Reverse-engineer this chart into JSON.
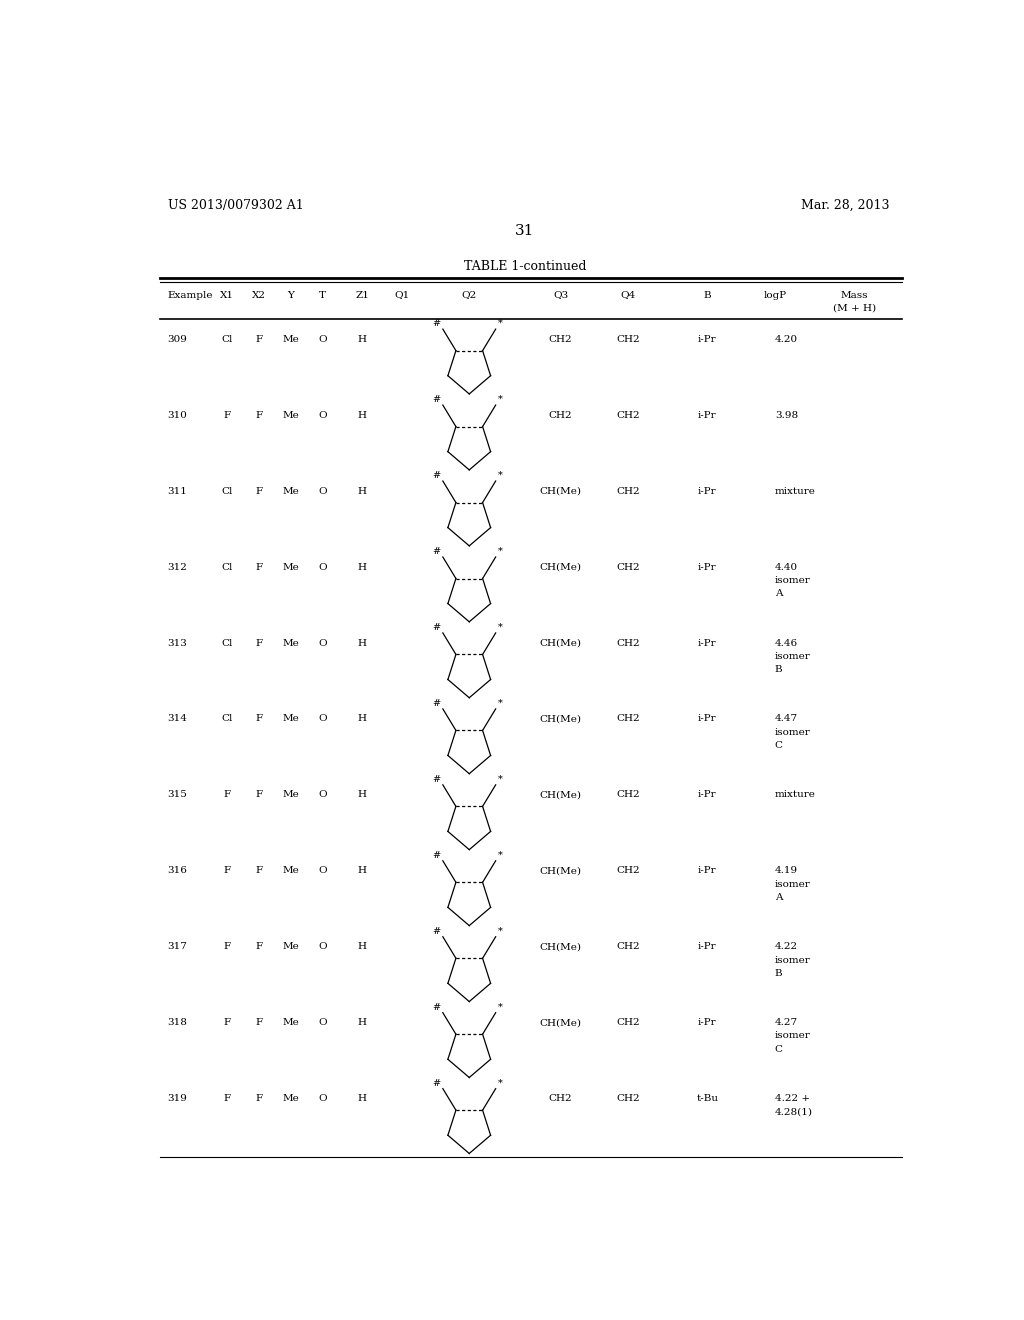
{
  "patent_number": "US 2013/0079302 A1",
  "date": "Mar. 28, 2013",
  "page_number": "31",
  "table_title": "TABLE 1-continued",
  "rows": [
    {
      "ex": "309",
      "x1": "Cl",
      "x2": "F",
      "y": "Me",
      "t": "O",
      "z1": "H",
      "q3": "CH2",
      "q4": "CH2",
      "b": "i-Pr",
      "logp": "4.20",
      "mass": ""
    },
    {
      "ex": "310",
      "x1": "F",
      "x2": "F",
      "y": "Me",
      "t": "O",
      "z1": "H",
      "q3": "CH2",
      "q4": "CH2",
      "b": "i-Pr",
      "logp": "3.98",
      "mass": ""
    },
    {
      "ex": "311",
      "x1": "Cl",
      "x2": "F",
      "y": "Me",
      "t": "O",
      "z1": "H",
      "q3": "CH(Me)",
      "q4": "CH2",
      "b": "i-Pr",
      "logp": "mixture",
      "mass": ""
    },
    {
      "ex": "312",
      "x1": "Cl",
      "x2": "F",
      "y": "Me",
      "t": "O",
      "z1": "H",
      "q3": "CH(Me)",
      "q4": "CH2",
      "b": "i-Pr",
      "logp": "4.40\nisomer\nA",
      "mass": ""
    },
    {
      "ex": "313",
      "x1": "Cl",
      "x2": "F",
      "y": "Me",
      "t": "O",
      "z1": "H",
      "q3": "CH(Me)",
      "q4": "CH2",
      "b": "i-Pr",
      "logp": "4.46\nisomer\nB",
      "mass": ""
    },
    {
      "ex": "314",
      "x1": "Cl",
      "x2": "F",
      "y": "Me",
      "t": "O",
      "z1": "H",
      "q3": "CH(Me)",
      "q4": "CH2",
      "b": "i-Pr",
      "logp": "4.47\nisomer\nC",
      "mass": ""
    },
    {
      "ex": "315",
      "x1": "F",
      "x2": "F",
      "y": "Me",
      "t": "O",
      "z1": "H",
      "q3": "CH(Me)",
      "q4": "CH2",
      "b": "i-Pr",
      "logp": "mixture",
      "mass": ""
    },
    {
      "ex": "316",
      "x1": "F",
      "x2": "F",
      "y": "Me",
      "t": "O",
      "z1": "H",
      "q3": "CH(Me)",
      "q4": "CH2",
      "b": "i-Pr",
      "logp": "4.19\nisomer\nA",
      "mass": ""
    },
    {
      "ex": "317",
      "x1": "F",
      "x2": "F",
      "y": "Me",
      "t": "O",
      "z1": "H",
      "q3": "CH(Me)",
      "q4": "CH2",
      "b": "i-Pr",
      "logp": "4.22\nisomer\nB",
      "mass": ""
    },
    {
      "ex": "318",
      "x1": "F",
      "x2": "F",
      "y": "Me",
      "t": "O",
      "z1": "H",
      "q3": "CH(Me)",
      "q4": "CH2",
      "b": "i-Pr",
      "logp": "4.27\nisomer\nC",
      "mass": ""
    },
    {
      "ex": "319",
      "x1": "F",
      "x2": "F",
      "y": "Me",
      "t": "O",
      "z1": "H",
      "q3": "CH2",
      "q4": "CH2",
      "b": "t-Bu",
      "logp": "4.22 +\n4.28(1)",
      "mass": ""
    }
  ],
  "background_color": "#ffffff",
  "text_color": "#000000"
}
